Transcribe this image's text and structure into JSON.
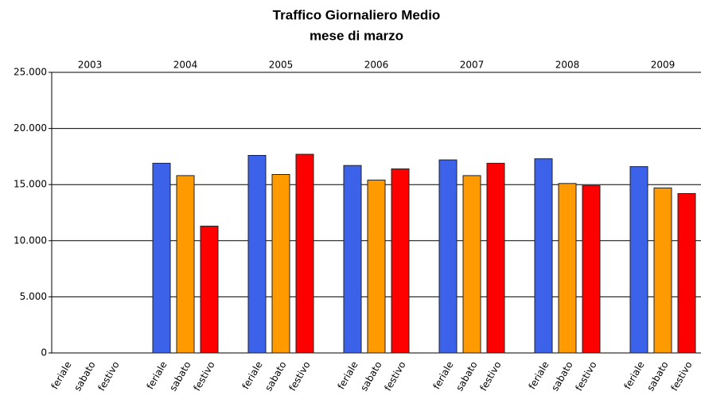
{
  "chart_data": {
    "type": "bar",
    "title": "Traffico Giornaliero Medio",
    "subtitle": "mese di marzo",
    "categories": [
      "2003",
      "2004",
      "2005",
      "2006",
      "2007",
      "2008",
      "2009"
    ],
    "series": [
      {
        "name": "feriale",
        "color": "#3b62e8",
        "values": [
          null,
          16900,
          17600,
          16700,
          17200,
          17300,
          16600
        ]
      },
      {
        "name": "sabato",
        "color": "#ff9a00",
        "values": [
          null,
          15800,
          15900,
          15400,
          15800,
          15100,
          14700
        ]
      },
      {
        "name": "festivo",
        "color": "#ff0000",
        "values": [
          null,
          11300,
          17700,
          16400,
          16900,
          14900,
          14200
        ]
      }
    ],
    "ylim": [
      0,
      25000
    ],
    "yticks": [
      0,
      {
        "value": 5000,
        "label": "5.000"
      },
      {
        "value": 10000,
        "label": "10.000"
      },
      {
        "value": 15000,
        "label": "15.000"
      },
      {
        "value": 20000,
        "label": "20.000"
      },
      {
        "value": 25000,
        "label": "25.000"
      }
    ],
    "grid": true
  }
}
